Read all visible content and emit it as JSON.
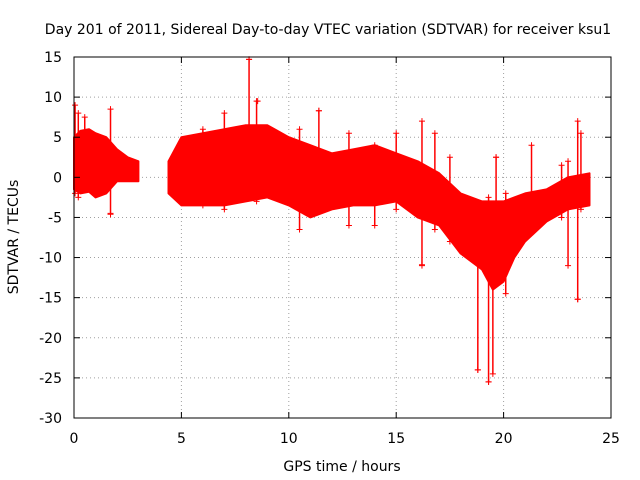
{
  "chart_data": {
    "type": "scatter",
    "title": "Day 201 of 2011, Sidereal Day-to-day VTEC variation (SDTVAR) for receiver ksu1",
    "xlabel": "GPS time / hours",
    "ylabel": "SDTVAR / TECUs",
    "xlim": [
      0,
      25
    ],
    "ylim": [
      -30,
      15
    ],
    "xticks": [
      0,
      5,
      10,
      15,
      20,
      25
    ],
    "yticks": [
      15,
      10,
      5,
      0,
      -5,
      -10,
      -15,
      -20,
      -25,
      -30
    ],
    "grid": true,
    "marker": "+",
    "color": "#ff0000",
    "envelope": [
      {
        "x": 0.0,
        "upper": 5.0,
        "lower": -1.5
      },
      {
        "x": 0.3,
        "upper": 5.8,
        "lower": -2.0
      },
      {
        "x": 0.7,
        "upper": 6.0,
        "lower": -1.8
      },
      {
        "x": 1.0,
        "upper": 5.5,
        "lower": -2.5
      },
      {
        "x": 1.5,
        "upper": 5.0,
        "lower": -2.0
      },
      {
        "x": 2.0,
        "upper": 3.5,
        "lower": -0.5
      },
      {
        "x": 2.5,
        "upper": 2.5,
        "lower": -0.5
      },
      {
        "x": 3.0,
        "upper": 2.0,
        "lower": -0.5
      },
      {
        "x": null
      },
      {
        "x": 4.4,
        "upper": 2.0,
        "lower": -2.0
      },
      {
        "x": 5.0,
        "upper": 5.0,
        "lower": -3.5
      },
      {
        "x": 6.0,
        "upper": 5.5,
        "lower": -3.5
      },
      {
        "x": 7.0,
        "upper": 6.0,
        "lower": -3.5
      },
      {
        "x": 8.0,
        "upper": 6.5,
        "lower": -3.0
      },
      {
        "x": 9.0,
        "upper": 6.5,
        "lower": -2.5
      },
      {
        "x": 10.0,
        "upper": 5.0,
        "lower": -3.5
      },
      {
        "x": 11.0,
        "upper": 4.0,
        "lower": -5.0
      },
      {
        "x": 12.0,
        "upper": 3.0,
        "lower": -4.0
      },
      {
        "x": 13.0,
        "upper": 3.5,
        "lower": -3.5
      },
      {
        "x": 14.0,
        "upper": 4.0,
        "lower": -3.5
      },
      {
        "x": 15.0,
        "upper": 3.0,
        "lower": -3.0
      },
      {
        "x": 16.0,
        "upper": 2.0,
        "lower": -5.0
      },
      {
        "x": 17.0,
        "upper": 0.5,
        "lower": -6.0
      },
      {
        "x": 18.0,
        "upper": -2.0,
        "lower": -9.5
      },
      {
        "x": 19.0,
        "upper": -3.0,
        "lower": -11.5
      },
      {
        "x": 19.5,
        "upper": -3.0,
        "lower": -14.0
      },
      {
        "x": 20.0,
        "upper": -3.0,
        "lower": -13.0
      },
      {
        "x": 20.5,
        "upper": -2.5,
        "lower": -10.0
      },
      {
        "x": 21.0,
        "upper": -2.0,
        "lower": -8.0
      },
      {
        "x": 22.0,
        "upper": -1.5,
        "lower": -5.5
      },
      {
        "x": 23.0,
        "upper": 0.0,
        "lower": -4.0
      },
      {
        "x": 24.0,
        "upper": 0.5,
        "lower": -3.5
      }
    ],
    "spikes": [
      {
        "x": 0.05,
        "top": 9.0,
        "bottom": -2.0
      },
      {
        "x": 0.2,
        "top": 8.0,
        "bottom": -2.5
      },
      {
        "x": 0.5,
        "top": 7.5,
        "bottom": -1.0
      },
      {
        "x": 1.7,
        "top": 8.5,
        "bottom": -4.5
      },
      {
        "x": 6.0,
        "top": 6.0,
        "bottom": -3.5
      },
      {
        "x": 7.0,
        "top": 8.0,
        "bottom": -4.0
      },
      {
        "x": 8.15,
        "top": 14.7,
        "bottom": 6.0
      },
      {
        "x": 8.5,
        "top": 9.5,
        "bottom": -3.0
      },
      {
        "x": 10.5,
        "top": 6.0,
        "bottom": -6.5
      },
      {
        "x": 11.4,
        "top": 8.3,
        "bottom": 3.5
      },
      {
        "x": 12.8,
        "top": 5.5,
        "bottom": -6.0
      },
      {
        "x": 14.0,
        "top": 4.0,
        "bottom": -6.0
      },
      {
        "x": 15.0,
        "top": 5.5,
        "bottom": -4.0
      },
      {
        "x": 16.2,
        "top": 7.0,
        "bottom": -11.0
      },
      {
        "x": 16.8,
        "top": 5.5,
        "bottom": -6.5
      },
      {
        "x": 17.5,
        "top": 2.5,
        "bottom": -8.0
      },
      {
        "x": 18.8,
        "top": -4.0,
        "bottom": -24.0
      },
      {
        "x": 19.3,
        "top": -2.5,
        "bottom": -25.5
      },
      {
        "x": 19.5,
        "top": -5.0,
        "bottom": -24.5
      },
      {
        "x": 19.65,
        "top": 2.5,
        "bottom": -12.0
      },
      {
        "x": 20.1,
        "top": -2.0,
        "bottom": -14.5
      },
      {
        "x": 21.3,
        "top": 4.0,
        "bottom": -4.0
      },
      {
        "x": 22.7,
        "top": 1.5,
        "bottom": -5.0
      },
      {
        "x": 23.0,
        "top": 2.0,
        "bottom": -11.0
      },
      {
        "x": 23.45,
        "top": 7.0,
        "bottom": -15.2
      },
      {
        "x": 23.6,
        "top": 5.5,
        "bottom": -4.0
      }
    ],
    "outliers": [
      {
        "x": 8.15,
        "y": 14.7
      },
      {
        "x": 8.55,
        "y": 9.5
      },
      {
        "x": 11.4,
        "y": 8.3
      },
      {
        "x": 19.65,
        "y": 2.5
      },
      {
        "x": 19.3,
        "y": -25.5
      },
      {
        "x": 18.8,
        "y": -24.0
      },
      {
        "x": 23.45,
        "y": -15.2
      },
      {
        "x": 1.7,
        "y": -4.6
      },
      {
        "x": 16.2,
        "y": -10.9
      }
    ]
  }
}
